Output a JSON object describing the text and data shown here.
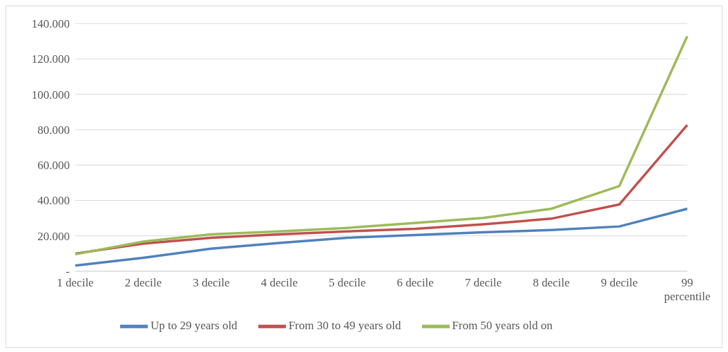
{
  "chart_data": {
    "type": "line",
    "categories": [
      "1 decile",
      "2 decile",
      "3 decile",
      "4 decile",
      "5 decile",
      "6 decile",
      "7 decile",
      "8 decile",
      "9 decile",
      "99 percentile"
    ],
    "series": [
      {
        "name": "Up to 29 years old",
        "color": "#4f81bd",
        "values": [
          3200,
          7600,
          12800,
          16000,
          18900,
          20500,
          22000,
          23300,
          25300,
          35300
        ]
      },
      {
        "name": "From 30 to 49 years old",
        "color": "#c0504d",
        "values": [
          10000,
          15600,
          18900,
          20900,
          22500,
          24000,
          26500,
          29700,
          37700,
          82600
        ]
      },
      {
        "name": "From 50 years old on",
        "color": "#9bbb59",
        "values": [
          9600,
          16800,
          20900,
          22500,
          24500,
          27300,
          30100,
          35300,
          48100,
          132800
        ]
      }
    ],
    "ylim": [
      0,
      140000
    ],
    "yticks": [
      {
        "value": 0,
        "label": "-"
      },
      {
        "value": 20000,
        "label": "20.000"
      },
      {
        "value": 40000,
        "label": "40.000"
      },
      {
        "value": 60000,
        "label": "60.000"
      },
      {
        "value": 80000,
        "label": "80.000"
      },
      {
        "value": 100000,
        "label": "100.000"
      },
      {
        "value": 120000,
        "label": "120.000"
      },
      {
        "value": 140000,
        "label": "140.000"
      }
    ],
    "grid": "y",
    "legend": "bottom",
    "marker": "none",
    "line_style": "solid"
  }
}
